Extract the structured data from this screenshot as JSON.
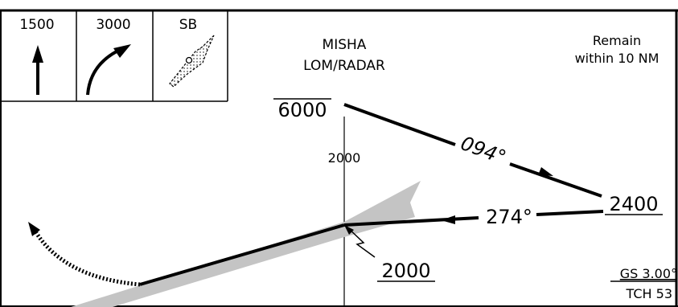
{
  "minimums_boxes": [
    {
      "label": "1500",
      "icon": "straight-climb-arrow-icon"
    },
    {
      "label": "3000",
      "icon": "climbing-turn-arrow-icon"
    },
    {
      "label": "SB",
      "icon": "stepdown-box-icon"
    }
  ],
  "fix": {
    "name": "MISHA",
    "type": "LOM/RADAR"
  },
  "remain_note": {
    "line1": "Remain",
    "line2": "within 10 NM"
  },
  "altitudes": {
    "fix_minimum": "6000",
    "fix_axis": "2000",
    "procedure_turn_end": "2400",
    "glideslope_intercept": "2000"
  },
  "courses": {
    "outbound": "094°",
    "inbound": "274°"
  },
  "glideslope": {
    "gs": "GS 3.00°",
    "tch": "TCH 53"
  },
  "colors": {
    "line": "#000000",
    "shade": "#c4c4c4",
    "background": "#ffffff"
  }
}
